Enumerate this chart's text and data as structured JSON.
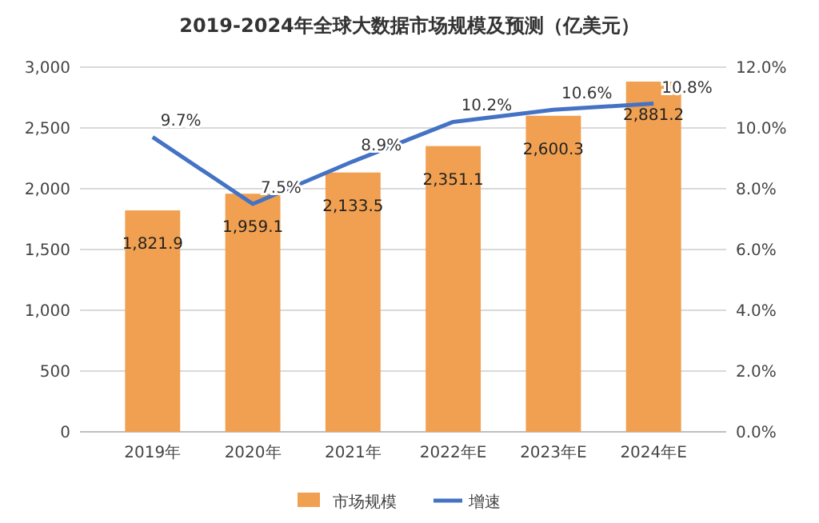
{
  "chart_data": {
    "type": "bar",
    "title": "2019-2024年全球大数据市场规模及预测（亿美元）",
    "categories": [
      "2019年",
      "2020年",
      "2021年",
      "2022年E",
      "2023年E",
      "2024年E"
    ],
    "series": [
      {
        "name": "市场规模",
        "color": "#f0a050",
        "values": [
          1821.9,
          1959.1,
          2133.5,
          2351.1,
          2600.3,
          2881.2
        ],
        "value_labels": [
          "1,821.9",
          "1,959.1",
          "2,133.5",
          "2,351.1",
          "2,600.3",
          "2,881.2"
        ]
      },
      {
        "name": "增速",
        "type": "line",
        "axis": "y2",
        "color": "#4472c4",
        "values": [
          9.7,
          7.5,
          8.9,
          10.2,
          10.6,
          10.8
        ],
        "value_labels": [
          "9.7%",
          "7.5%",
          "8.9%",
          "10.2%",
          "10.6%",
          "10.8%"
        ]
      }
    ],
    "ylim": [
      0,
      3000
    ],
    "yticks": [
      {
        "value": 0,
        "label": "0"
      },
      {
        "value": 500,
        "label": "500"
      },
      {
        "value": 1000,
        "label": "1,000"
      },
      {
        "value": 1500,
        "label": "1,500"
      },
      {
        "value": 2000,
        "label": "2,000"
      },
      {
        "value": 2500,
        "label": "2,500"
      },
      {
        "value": 3000,
        "label": "3,000"
      }
    ],
    "y2lim": [
      0,
      12
    ],
    "y2ticks": [
      {
        "value": 0,
        "label": "0.0%"
      },
      {
        "value": 2,
        "label": "2.0%"
      },
      {
        "value": 4,
        "label": "4.0%"
      },
      {
        "value": 6,
        "label": "6.0%"
      },
      {
        "value": 8,
        "label": "8.0%"
      },
      {
        "value": 10,
        "label": "10.0%"
      },
      {
        "value": 12,
        "label": "12.0%"
      }
    ],
    "grid": "y",
    "legend": "bottom",
    "marker": "none",
    "line_style": "solid"
  }
}
